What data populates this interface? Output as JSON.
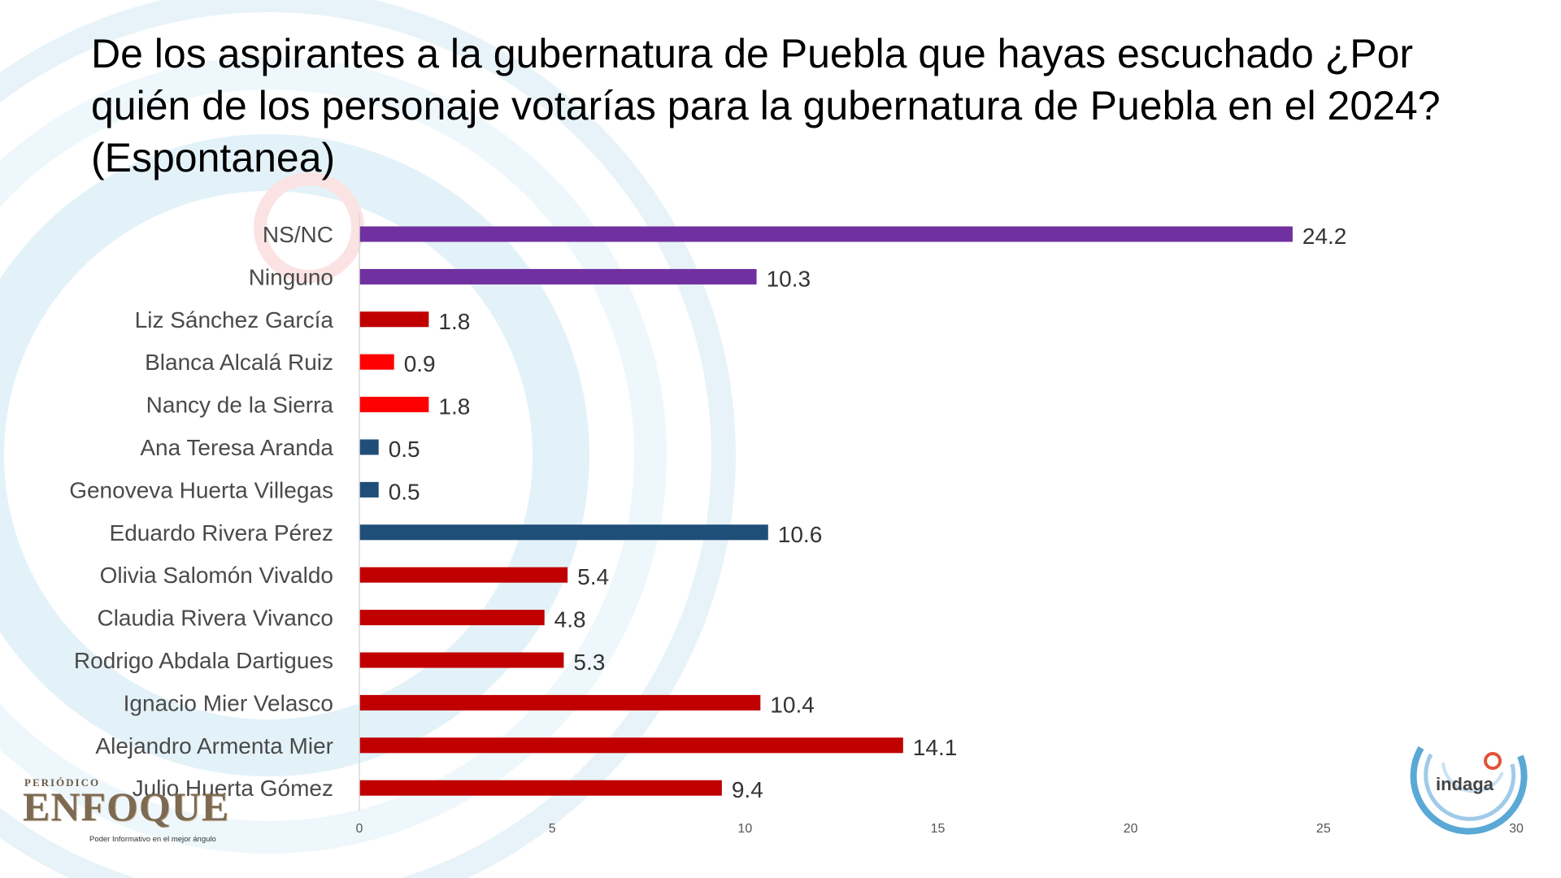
{
  "title": "De los aspirantes a la gubernatura de Puebla que hayas escuchado ¿Por quién de los personaje votarías para la gubernatura de Puebla en el 2024? (Espontanea)",
  "chart_data": {
    "type": "bar",
    "orientation": "horizontal",
    "title": "De los aspirantes a la gubernatura de Puebla que hayas escuchado ¿Por quién de los personaje votarías para la gubernatura de Puebla en el 2024? (Espontanea)",
    "categories": [
      "NS/NC",
      "Ninguno",
      "Liz Sánchez García",
      "Blanca Alcalá Ruiz",
      "Nancy de la Sierra",
      "Ana Teresa Aranda",
      "Genoveva Huerta Villegas",
      "Eduardo Rivera Pérez",
      "Olivia Salomón Vivaldo",
      "Claudia Rivera Vivanco",
      "Rodrigo Abdala Dartigues",
      "Ignacio Mier Velasco",
      "Alejandro Armenta Mier",
      "Julio Huerta Gómez"
    ],
    "values": [
      24.2,
      10.3,
      1.8,
      0.9,
      1.8,
      0.5,
      0.5,
      10.6,
      5.4,
      4.8,
      5.3,
      10.4,
      14.1,
      9.4
    ],
    "value_labels": [
      "24.2",
      "10.3",
      "1.8",
      "0.9",
      "1.8",
      "0.5",
      "0.5",
      "10.6",
      "5.4",
      "4.8",
      "5.3",
      "10.4",
      "14.1",
      "9.4"
    ],
    "bar_colors": [
      "#7030a0",
      "#7030a0",
      "#c00000",
      "#ff0000",
      "#ff0000",
      "#1f4e79",
      "#1f4e79",
      "#1f4e79",
      "#c00000",
      "#c00000",
      "#c00000",
      "#c00000",
      "#c00000",
      "#c00000"
    ],
    "xlim": [
      0,
      30
    ],
    "xticks": [
      0,
      5,
      10,
      15,
      20,
      25,
      30
    ],
    "xtick_labels": [
      "0",
      "5",
      "10",
      "15",
      "20",
      "25",
      "30"
    ],
    "xlabel": "",
    "ylabel": "",
    "grid": false,
    "legend": "none"
  },
  "branding": {
    "left_small": "PERIÓDICO",
    "left_name": "ENFOQUE",
    "left_tagline": "Poder Informativo en el mejor ángulo",
    "right_name": "indaga"
  },
  "colors": {
    "purple": "#7030a0",
    "dark_red": "#c00000",
    "red": "#ff0000",
    "navy": "#1f4e79",
    "watermark": "#d6ecf6"
  }
}
